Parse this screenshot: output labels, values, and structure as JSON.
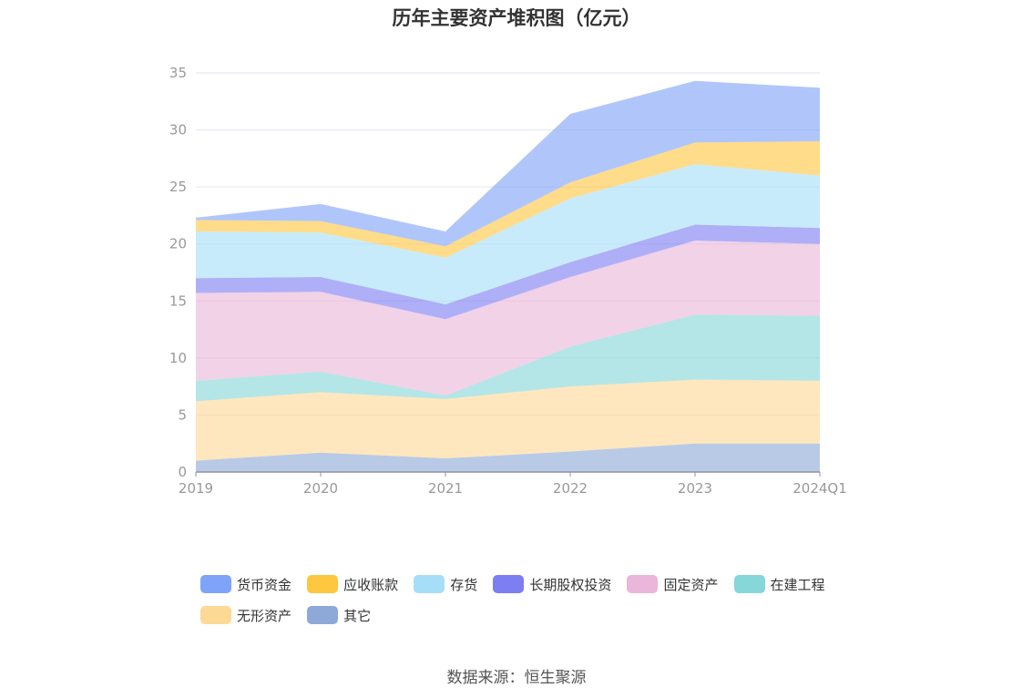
{
  "title": "历年主要资产堆积图（亿元）",
  "source": "数据来源：恒生聚源",
  "chart_data": {
    "type": "area",
    "stacked": true,
    "categories": [
      "2019",
      "2020",
      "2021",
      "2022",
      "2023",
      "2024Q1"
    ],
    "ylim": [
      0,
      35
    ],
    "yticks": [
      0,
      5,
      10,
      15,
      20,
      25,
      30,
      35
    ],
    "grid": true,
    "legend_position": "bottom",
    "series": [
      {
        "name": "其它",
        "color": "#8ea9d8",
        "values": [
          1.0,
          1.7,
          1.2,
          1.8,
          2.5,
          2.5
        ]
      },
      {
        "name": "无形资产",
        "color": "#fdd996",
        "values": [
          5.2,
          5.3,
          5.2,
          5.7,
          5.6,
          5.5
        ]
      },
      {
        "name": "在建工程",
        "color": "#86d7d8",
        "values": [
          1.8,
          1.8,
          0.3,
          3.5,
          5.7,
          5.7
        ]
      },
      {
        "name": "固定资产",
        "color": "#eab6d9",
        "values": [
          7.7,
          7.0,
          6.7,
          6.1,
          6.5,
          6.3
        ]
      },
      {
        "name": "长期股权投资",
        "color": "#7d7ef2",
        "values": [
          1.3,
          1.3,
          1.3,
          1.3,
          1.4,
          1.4
        ]
      },
      {
        "name": "存货",
        "color": "#a6def8",
        "values": [
          4.1,
          3.9,
          4.1,
          5.6,
          5.3,
          4.6
        ]
      },
      {
        "name": "应收账款",
        "color": "#fdc740",
        "values": [
          1.0,
          1.0,
          1.0,
          1.4,
          1.9,
          3.0
        ]
      },
      {
        "name": "货币资金",
        "color": "#7fa3f8",
        "values": [
          0.2,
          1.5,
          1.3,
          6.0,
          5.4,
          4.7
        ]
      }
    ]
  },
  "legend": [
    {
      "name": "货币资金",
      "color": "#7fa3f8"
    },
    {
      "name": "应收账款",
      "color": "#fdc740"
    },
    {
      "name": "存货",
      "color": "#a6def8"
    },
    {
      "name": "长期股权投资",
      "color": "#7d7ef2"
    },
    {
      "name": "固定资产",
      "color": "#eab6d9"
    },
    {
      "name": "在建工程",
      "color": "#86d7d8"
    },
    {
      "name": "无形资产",
      "color": "#fdd996"
    },
    {
      "name": "其它",
      "color": "#8ea9d8"
    }
  ]
}
